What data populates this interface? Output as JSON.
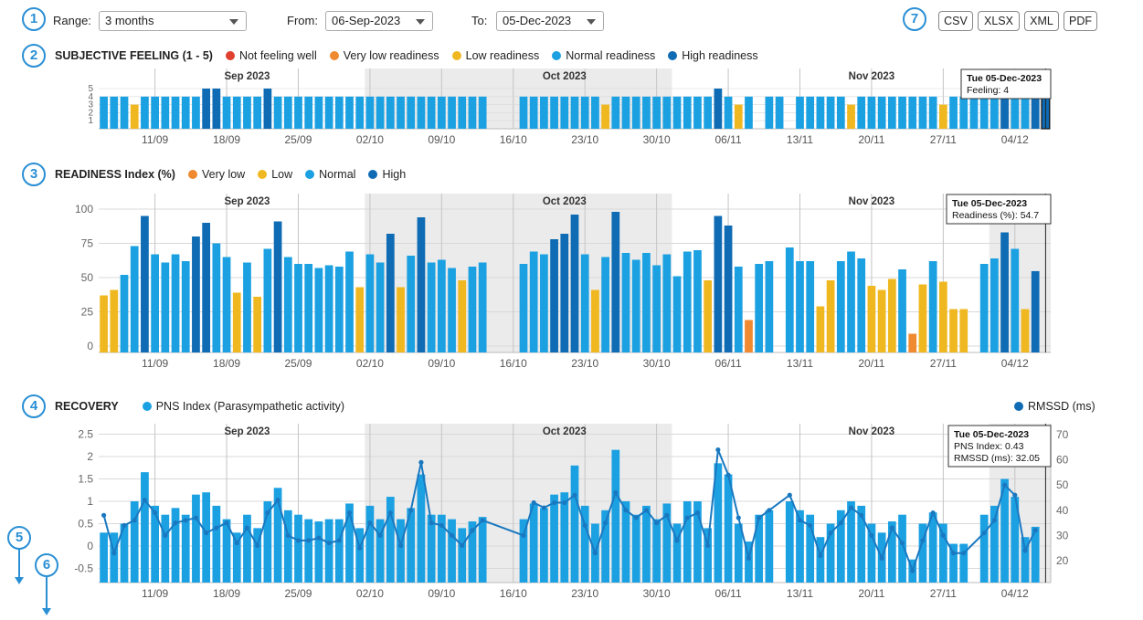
{
  "callouts": [
    "1",
    "2",
    "3",
    "4",
    "5",
    "6",
    "7"
  ],
  "controls": {
    "range_label": "Range:",
    "range_value": "3 months",
    "from_label": "From:",
    "from_value": "06-Sep-2023",
    "to_label": "To:",
    "to_value": "05-Dec-2023"
  },
  "exports": [
    "CSV",
    "XLSX",
    "XML",
    "PDF"
  ],
  "colors": {
    "red": "#e04030",
    "orange": "#f08a30",
    "yellow": "#f0b820",
    "normal": "#1ba1e2",
    "high": "#0e6bb4",
    "line": "#1a78c0",
    "shade": "#ebebeb",
    "grid": "#d8d8d8",
    "vline": "#c4c4c4"
  },
  "chart_data": [
    {
      "id": "feeling",
      "type": "bar",
      "title": "SUBJECTIVE FEELING (1 - 5)",
      "legend": [
        {
          "name": "Not feeling well",
          "color": "red"
        },
        {
          "name": "Very low readiness",
          "color": "orange"
        },
        {
          "name": "Low readiness",
          "color": "yellow"
        },
        {
          "name": "Normal readiness",
          "color": "normal"
        },
        {
          "name": "High readiness",
          "color": "high"
        }
      ],
      "ylim": [
        0,
        5
      ],
      "yticks": [
        "1",
        "2",
        "3",
        "4",
        "5"
      ],
      "months": [
        "Sep 2023",
        "Oct 2023",
        "Nov 2023"
      ],
      "xticks": [
        "11/09",
        "18/09",
        "25/09",
        "02/10",
        "09/10",
        "16/10",
        "23/10",
        "30/10",
        "06/11",
        "13/11",
        "20/11",
        "27/11",
        "04/12"
      ],
      "values": [
        4,
        4,
        4,
        3,
        4,
        4,
        4,
        4,
        4,
        4,
        5,
        5,
        4,
        4,
        4,
        4,
        5,
        4,
        4,
        4,
        4,
        4,
        4,
        4,
        4,
        4,
        4,
        4,
        4,
        4,
        4,
        4,
        4,
        4,
        4,
        4,
        4,
        4,
        null,
        null,
        null,
        4,
        4,
        4,
        4,
        4,
        4,
        4,
        4,
        3,
        4,
        4,
        4,
        4,
        4,
        4,
        4,
        4,
        4,
        4,
        5,
        4,
        3,
        4,
        null,
        4,
        4,
        null,
        4,
        4,
        4,
        4,
        4,
        3,
        4,
        4,
        4,
        4,
        4,
        4,
        4,
        4,
        3,
        4,
        4,
        4,
        4,
        4,
        4,
        4,
        4,
        4,
        4
      ],
      "colors": [
        "normal",
        "normal",
        "normal",
        "yellow",
        "normal",
        "normal",
        "normal",
        "normal",
        "normal",
        "normal",
        "high",
        "high",
        "normal",
        "normal",
        "normal",
        "normal",
        "high",
        "normal",
        "normal",
        "normal",
        "normal",
        "normal",
        "normal",
        "normal",
        "normal",
        "normal",
        "normal",
        "normal",
        "normal",
        "normal",
        "normal",
        "normal",
        "normal",
        "normal",
        "normal",
        "normal",
        "normal",
        "normal",
        null,
        null,
        null,
        "normal",
        "normal",
        "normal",
        "normal",
        "normal",
        "normal",
        "normal",
        "normal",
        "yellow",
        "normal",
        "normal",
        "normal",
        "normal",
        "normal",
        "normal",
        "normal",
        "normal",
        "normal",
        "normal",
        "high",
        "normal",
        "yellow",
        "normal",
        null,
        "normal",
        "normal",
        null,
        "normal",
        "normal",
        "normal",
        "normal",
        "normal",
        "yellow",
        "normal",
        "normal",
        "normal",
        "normal",
        "normal",
        "normal",
        "normal",
        "normal",
        "yellow",
        "normal",
        "normal",
        "normal",
        "normal",
        "normal",
        "high",
        "normal",
        "normal",
        "high",
        "high"
      ],
      "tooltip": [
        "Tue  05-Dec-2023",
        "Feeling:  4"
      ]
    },
    {
      "id": "readiness",
      "type": "bar",
      "title": "READINESS Index (%)",
      "legend": [
        {
          "name": "Very low",
          "color": "orange"
        },
        {
          "name": "Low",
          "color": "yellow"
        },
        {
          "name": "Normal",
          "color": "normal"
        },
        {
          "name": "High",
          "color": "high"
        }
      ],
      "ylim": [
        0,
        100
      ],
      "yticks": [
        "0",
        "25",
        "50",
        "75",
        "100"
      ],
      "months": [
        "Sep 2023",
        "Oct 2023",
        "Nov 2023"
      ],
      "xticks": [
        "11/09",
        "18/09",
        "25/09",
        "02/10",
        "09/10",
        "16/10",
        "23/10",
        "30/10",
        "06/11",
        "13/11",
        "20/11",
        "27/11",
        "04/12"
      ],
      "values": [
        37,
        41,
        52,
        73,
        95,
        67,
        61,
        67,
        62,
        80,
        90,
        75,
        65,
        39,
        61,
        36,
        71,
        91,
        65,
        60,
        60,
        57,
        59,
        58,
        69,
        43,
        67,
        61,
        82,
        43,
        66,
        94,
        61,
        63,
        57,
        48,
        58,
        61,
        null,
        null,
        null,
        60,
        69,
        67,
        78,
        82,
        96,
        67,
        41,
        65,
        98,
        68,
        63,
        68,
        59,
        67,
        51,
        69,
        70,
        48,
        95,
        88,
        58,
        19,
        60,
        62,
        null,
        72,
        62,
        62,
        29,
        48,
        62,
        69,
        64,
        44,
        41,
        49,
        56,
        9,
        45,
        62,
        47,
        27,
        27,
        null,
        60,
        64,
        83,
        71,
        27,
        54.7
      ],
      "colors": [
        "yellow",
        "yellow",
        "normal",
        "normal",
        "high",
        "normal",
        "normal",
        "normal",
        "normal",
        "high",
        "high",
        "normal",
        "normal",
        "yellow",
        "normal",
        "yellow",
        "normal",
        "high",
        "normal",
        "normal",
        "normal",
        "normal",
        "normal",
        "normal",
        "normal",
        "yellow",
        "normal",
        "normal",
        "high",
        "yellow",
        "normal",
        "high",
        "normal",
        "normal",
        "normal",
        "yellow",
        "normal",
        "normal",
        null,
        null,
        null,
        "normal",
        "normal",
        "normal",
        "high",
        "high",
        "high",
        "normal",
        "yellow",
        "normal",
        "high",
        "normal",
        "normal",
        "normal",
        "normal",
        "normal",
        "normal",
        "normal",
        "normal",
        "yellow",
        "high",
        "high",
        "normal",
        "orange",
        "normal",
        "normal",
        null,
        "normal",
        "normal",
        "normal",
        "yellow",
        "yellow",
        "normal",
        "normal",
        "normal",
        "yellow",
        "yellow",
        "yellow",
        "normal",
        "orange",
        "yellow",
        "normal",
        "yellow",
        "yellow",
        "yellow",
        null,
        "normal",
        "normal",
        "high",
        "normal",
        "yellow",
        "high"
      ],
      "tooltip": [
        "Tue  05-Dec-2023",
        "Readiness  (%):  54.7"
      ]
    },
    {
      "id": "recovery",
      "type": "bar+line",
      "title": "RECOVERY",
      "legend_left": "PNS Index (Parasympathetic activity)",
      "legend_right": "RMSSD (ms)",
      "ylim": [
        -0.8,
        2.5
      ],
      "yticks": [
        "-0.5",
        "0",
        "0.5",
        "1",
        "1.5",
        "2",
        "2.5"
      ],
      "y2lim": [
        12,
        72
      ],
      "y2ticks": [
        "20",
        "30",
        "40",
        "50",
        "60",
        "70"
      ],
      "months": [
        "Sep 2023",
        "Oct 2023",
        "Nov 2023"
      ],
      "xticks": [
        "11/09",
        "18/09",
        "25/09",
        "02/10",
        "09/10",
        "16/10",
        "23/10",
        "30/10",
        "06/11",
        "13/11",
        "20/11",
        "27/11",
        "04/12"
      ],
      "values": [
        0.3,
        0.3,
        0.5,
        1.0,
        1.65,
        0.9,
        0.7,
        0.85,
        0.7,
        1.15,
        1.2,
        0.9,
        0.6,
        0.3,
        0.7,
        0.4,
        1.0,
        1.3,
        0.8,
        0.7,
        0.6,
        0.55,
        0.6,
        0.6,
        0.95,
        0.4,
        0.9,
        0.6,
        1.1,
        0.6,
        0.85,
        1.6,
        0.7,
        0.7,
        0.6,
        0.4,
        0.55,
        0.65,
        null,
        null,
        null,
        0.6,
        0.95,
        0.85,
        1.15,
        1.2,
        1.8,
        0.9,
        0.5,
        0.8,
        2.15,
        1.0,
        0.7,
        0.9,
        0.6,
        0.95,
        0.5,
        1.0,
        1.0,
        0.4,
        1.85,
        1.6,
        0.5,
        0.1,
        0.7,
        0.8,
        null,
        1.0,
        0.8,
        0.7,
        0.2,
        0.5,
        0.8,
        1.0,
        0.9,
        0.5,
        0.3,
        0.55,
        0.7,
        -0.3,
        0.5,
        0.75,
        0.5,
        0.05,
        0.05,
        null,
        0.7,
        0.9,
        1.5,
        1.1,
        0.2,
        0.43
      ],
      "colors": "normal",
      "rmssd": [
        38,
        23,
        34,
        36,
        44,
        39,
        30,
        35,
        36,
        37,
        31,
        33,
        35,
        27,
        33,
        26,
        39,
        44,
        30,
        28,
        28,
        29,
        27,
        28,
        39,
        25,
        35,
        30,
        39,
        26,
        40,
        59,
        35,
        34,
        30,
        26,
        32,
        36,
        null,
        null,
        null,
        30,
        43,
        41,
        43,
        43,
        46,
        34,
        23,
        35,
        47,
        40,
        37,
        40,
        35,
        38,
        28,
        37,
        39,
        26,
        64,
        54,
        37,
        21,
        37,
        40,
        null,
        46,
        36,
        34,
        22,
        31,
        35,
        41,
        38,
        30,
        21,
        33,
        27,
        16,
        28,
        39,
        30,
        23,
        23,
        null,
        31,
        36,
        50,
        46,
        24,
        32.05
      ],
      "tooltip": [
        "Tue  05-Dec-2023",
        "PNS  Index:  0.43",
        "RMSSD  (ms):  32.05"
      ]
    }
  ]
}
